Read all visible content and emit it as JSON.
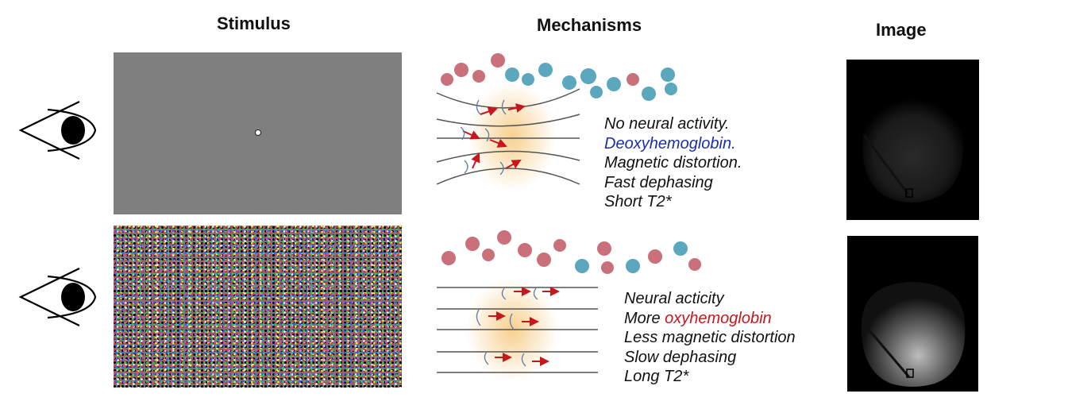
{
  "headers": {
    "stimulus": "Stimulus",
    "mechanisms": "Mechanisms",
    "image": "Image"
  },
  "rows": [
    {
      "condition": "rest",
      "stimulus_display": "gray screen with fixation dot",
      "caption": {
        "line1": "No neural activity.",
        "line2": "Deoxyhemoglobin.",
        "line3": "Magnetic distortion.",
        "line4": "Fast dephasing",
        "line5": "Short T2*"
      }
    },
    {
      "condition": "active",
      "stimulus_display": "colored random noise pattern",
      "caption": {
        "line1": "Neural acticity",
        "line2_prefix": "More ",
        "line2_highlight": "oxyhemoglobin",
        "line3": "Less magnetic distortion",
        "line4": "Slow dephasing",
        "line5": "Long T2*"
      }
    }
  ],
  "colors": {
    "deoxy_text": "#1a2fa8",
    "oxy_text": "#c8161d",
    "hemoglobin_red": "#c9707a",
    "hemoglobin_blue": "#5ba7be",
    "arrow_red": "#c8161d",
    "glow": "#f6c77a",
    "stimulus_gray": "#7f7f7f"
  },
  "icons": [
    "eye-icon",
    "hemoglobin-molecule-icon",
    "magnetic-field-lines",
    "spin-arrow-icon"
  ]
}
